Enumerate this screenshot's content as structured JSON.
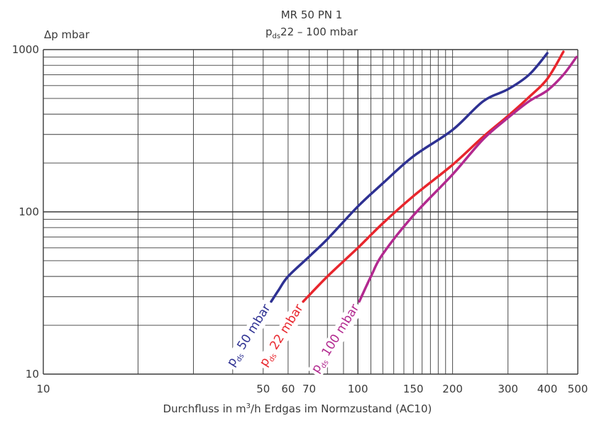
{
  "chart_data": {
    "type": "line",
    "title_line1": "MR 50 PN 1",
    "title_line2_main": "p",
    "title_line2_sub": "ds",
    "title_line2_rest": "22 – 100 mbar",
    "ylabel": "Δp mbar",
    "xlabel_pre": "Durchfluss in m",
    "xlabel_sup": "3",
    "xlabel_post": "/h Erdgas im Normzustand (AC10)",
    "x_scale": "log",
    "y_scale": "log",
    "xlim": [
      10,
      500
    ],
    "ylim": [
      10,
      1000
    ],
    "grid": true,
    "x_ticks": [
      {
        "v": 10,
        "label": "10"
      },
      {
        "v": 50,
        "label": "50"
      },
      {
        "v": 60,
        "label": "60"
      },
      {
        "v": 70,
        "label": "70"
      },
      {
        "v": 100,
        "label": "100"
      },
      {
        "v": 150,
        "label": "150"
      },
      {
        "v": 200,
        "label": "200"
      },
      {
        "v": 300,
        "label": "300"
      },
      {
        "v": 400,
        "label": "400"
      },
      {
        "v": 500,
        "label": "500"
      }
    ],
    "y_ticks": [
      {
        "v": 10,
        "label": "10"
      },
      {
        "v": 100,
        "label": "100"
      },
      {
        "v": 1000,
        "label": "1000"
      }
    ],
    "series": [
      {
        "name_main": "p",
        "name_sub": "ds",
        "name_rest": " 50 mbar",
        "color": "#2e3192",
        "points": [
          [
            53,
            28
          ],
          [
            56,
            33
          ],
          [
            60,
            40
          ],
          [
            70,
            53
          ],
          [
            80,
            68
          ],
          [
            100,
            108
          ],
          [
            120,
            150
          ],
          [
            150,
            220
          ],
          [
            200,
            320
          ],
          [
            250,
            480
          ],
          [
            300,
            570
          ],
          [
            350,
            700
          ],
          [
            400,
            950
          ]
        ]
      },
      {
        "name_main": "p",
        "name_sub": "ds",
        "name_rest": " 22 mbar",
        "color": "#e8262d",
        "points": [
          [
            67,
            28
          ],
          [
            80,
            40
          ],
          [
            100,
            60
          ],
          [
            120,
            85
          ],
          [
            150,
            125
          ],
          [
            200,
            195
          ],
          [
            250,
            290
          ],
          [
            300,
            390
          ],
          [
            350,
            510
          ],
          [
            400,
            660
          ],
          [
            450,
            970
          ]
        ]
      },
      {
        "name_main": "p",
        "name_sub": "ds",
        "name_rest": " 100 mbar",
        "color": "#b2298f",
        "points": [
          [
            101,
            28
          ],
          [
            110,
            40
          ],
          [
            120,
            55
          ],
          [
            150,
            95
          ],
          [
            200,
            170
          ],
          [
            250,
            280
          ],
          [
            300,
            380
          ],
          [
            350,
            480
          ],
          [
            400,
            560
          ],
          [
            450,
            700
          ],
          [
            495,
            900
          ]
        ]
      }
    ]
  }
}
